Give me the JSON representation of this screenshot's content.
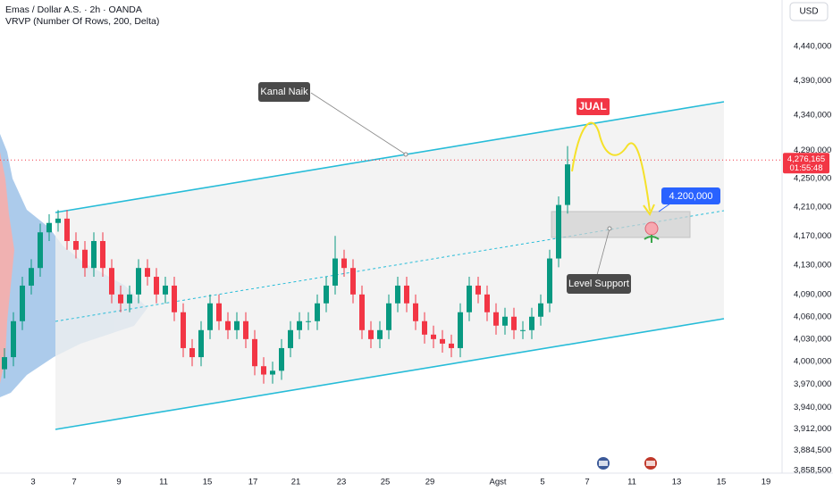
{
  "header": {
    "title": "Emas / Dollar A.S. · 2h · OANDA",
    "indicator": "VRVP (Number Of Rows, 200, Delta)",
    "currency": "USD"
  },
  "chart_data": {
    "type": "candlestick",
    "open": [
      3990000,
      4006000,
      4054000,
      4102000,
      4126000,
      4175000,
      4188000,
      4194000,
      4163000,
      4151000,
      4126000,
      4163000,
      4126000,
      4090000,
      4078000,
      4090000,
      4126000,
      4114000,
      4090000,
      4102000,
      4066000,
      4018000,
      4006000,
      4042000,
      4078000,
      4054000,
      4042000,
      4054000,
      4030000,
      3994000,
      3983000,
      3988000,
      4018000,
      4042000,
      4054000,
      4054000,
      4078000,
      4102000,
      4139000,
      4126000,
      4090000,
      4042000,
      4030000,
      4042000,
      4078000,
      4102000,
      4078000,
      4054000,
      4036000,
      4030000,
      4024000,
      4018000,
      4066000,
      4102000,
      4090000,
      4066000,
      4048000,
      4060000,
      4042000,
      4042000,
      4060000,
      4078000,
      4139000,
      4213000
    ],
    "high": [
      4018000,
      4066000,
      4114000,
      4138000,
      4187000,
      4200000,
      4206000,
      4206000,
      4175000,
      4163000,
      4175000,
      4175000,
      4138000,
      4102000,
      4102000,
      4138000,
      4138000,
      4126000,
      4114000,
      4114000,
      4078000,
      4030000,
      4054000,
      4090000,
      4090000,
      4066000,
      4066000,
      4066000,
      4042000,
      4006000,
      4000000,
      4030000,
      4054000,
      4066000,
      4066000,
      4090000,
      4114000,
      4170000,
      4151000,
      4138000,
      4102000,
      4054000,
      4054000,
      4090000,
      4114000,
      4114000,
      4090000,
      4066000,
      4048000,
      4042000,
      4036000,
      4078000,
      4114000,
      4114000,
      4102000,
      4078000,
      4072000,
      4072000,
      4054000,
      4072000,
      4090000,
      4151000,
      4225000,
      4296000
    ],
    "low": [
      3978000,
      3994000,
      4042000,
      4090000,
      4114000,
      4163000,
      4176000,
      4151000,
      4139000,
      4114000,
      4114000,
      4114000,
      4078000,
      4066000,
      4066000,
      4078000,
      4102000,
      4078000,
      4078000,
      4054000,
      4006000,
      3994000,
      3994000,
      4030000,
      4042000,
      4030000,
      4030000,
      4018000,
      3982000,
      3971000,
      3971000,
      3976000,
      4006000,
      4030000,
      4042000,
      4042000,
      4066000,
      4090000,
      4114000,
      4078000,
      4030000,
      4018000,
      4018000,
      4030000,
      4066000,
      4066000,
      4042000,
      4024000,
      4018000,
      4012000,
      4006000,
      4006000,
      4054000,
      4078000,
      4054000,
      4036000,
      4036000,
      4030000,
      4030000,
      4030000,
      4048000,
      4066000,
      4127000,
      4201000
    ],
    "close": [
      4006000,
      4054000,
      4102000,
      4126000,
      4175000,
      4188000,
      4194000,
      4163000,
      4151000,
      4126000,
      4163000,
      4126000,
      4090000,
      4078000,
      4090000,
      4126000,
      4114000,
      4090000,
      4102000,
      4066000,
      4018000,
      4006000,
      4042000,
      4078000,
      4054000,
      4042000,
      4054000,
      4030000,
      3994000,
      3983000,
      3988000,
      4018000,
      4042000,
      4054000,
      4054000,
      4078000,
      4102000,
      4139000,
      4126000,
      4090000,
      4042000,
      4030000,
      4042000,
      4078000,
      4102000,
      4078000,
      4054000,
      4036000,
      4030000,
      4024000,
      4018000,
      4066000,
      4102000,
      4090000,
      4066000,
      4048000,
      4060000,
      4042000,
      4042000,
      4060000,
      4078000,
      4139000,
      4213000,
      4270000
    ],
    "up_color": "#089981",
    "down_color": "#f23645",
    "log_scale": true,
    "ylim": [
      3843700,
      4508800
    ],
    "yticks": [
      {
        "value": 4440000,
        "label": "4,440,000"
      },
      {
        "value": 4390000,
        "label": "4,390,000"
      },
      {
        "value": 4340000,
        "label": "4,340,000"
      },
      {
        "value": 4290000,
        "label": "4,290,000"
      },
      {
        "value": 4250000,
        "label": "4,250,000"
      },
      {
        "value": 4210000,
        "label": "4,210,000"
      },
      {
        "value": 4170000,
        "label": "4,170,000"
      },
      {
        "value": 4130000,
        "label": "4,130,000"
      },
      {
        "value": 4090000,
        "label": "4,090,000"
      },
      {
        "value": 4060000,
        "label": "4,060,000"
      },
      {
        "value": 4030000,
        "label": "4,030,000"
      },
      {
        "value": 4000000,
        "label": "4,000,000"
      },
      {
        "value": 3970000,
        "label": "3,970,000"
      },
      {
        "value": 3940000,
        "label": "3,940,000"
      },
      {
        "value": 3912000,
        "label": "3,912,000"
      },
      {
        "value": 3884500,
        "label": "3,884,500"
      },
      {
        "value": 3858500,
        "label": "3,858,500"
      }
    ],
    "xlim": [
      -0.5,
      87.5
    ],
    "xticks": [
      {
        "value": 3.2,
        "label": "3"
      },
      {
        "value": 7.8,
        "label": "7"
      },
      {
        "value": 12.8,
        "label": "9"
      },
      {
        "value": 17.8,
        "label": "11"
      },
      {
        "value": 22.7,
        "label": "15"
      },
      {
        "value": 27.8,
        "label": "17"
      },
      {
        "value": 32.6,
        "label": "21"
      },
      {
        "value": 37.7,
        "label": "23"
      },
      {
        "value": 42.6,
        "label": "25"
      },
      {
        "value": 47.6,
        "label": "29"
      },
      {
        "value": 55.2,
        "label": "Agst"
      },
      {
        "value": 60.2,
        "label": "5"
      },
      {
        "value": 65.2,
        "label": "7"
      },
      {
        "value": 70.2,
        "label": "11"
      },
      {
        "value": 75.2,
        "label": "13"
      },
      {
        "value": 80.2,
        "label": "15"
      },
      {
        "value": 85.2,
        "label": "19"
      }
    ],
    "last_price": {
      "value": 4276165,
      "label": "4,276,165"
    },
    "countdown": "01:55:48",
    "annotations": {
      "channel": "Kanal Naik",
      "signal": "JUAL",
      "target": "4.200,000",
      "support": "Level Support"
    }
  }
}
